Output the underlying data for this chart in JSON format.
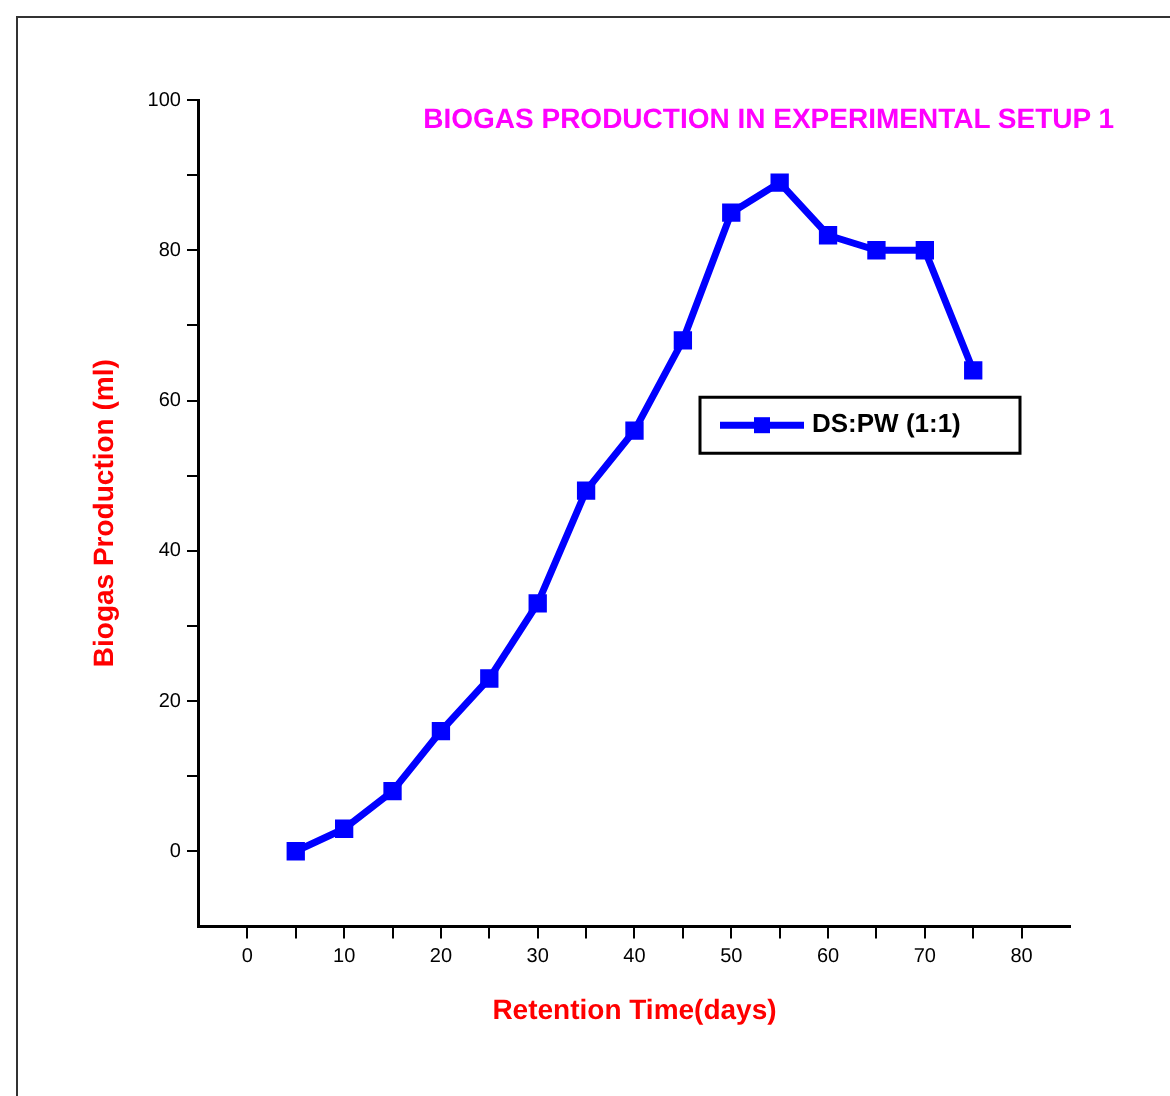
{
  "chart_data": {
    "type": "line",
    "title": "BIOGAS PRODUCTION IN EXPERIMENTAL SETUP 1",
    "xlabel": "Retention Time(days)",
    "ylabel": "Biogas Production (ml)",
    "x": [
      5,
      10,
      15,
      20,
      25,
      30,
      35,
      40,
      45,
      50,
      55,
      60,
      65,
      70,
      75
    ],
    "series": [
      {
        "name": "DS:PW (1:1)",
        "color": "#0000ff",
        "values": [
          0,
          3,
          8,
          16,
          23,
          33,
          48,
          56,
          68,
          85,
          89,
          82,
          80,
          80,
          64
        ]
      }
    ],
    "xlim": [
      -5,
      85
    ],
    "xticks": [
      0,
      {
        "value": 5,
        "label": null
      },
      10,
      {
        "value": 15,
        "label": null
      },
      20,
      {
        "value": 25,
        "label": null
      },
      30,
      {
        "value": 35,
        "label": null
      },
      40,
      {
        "value": 45,
        "label": null
      },
      50,
      {
        "value": 55,
        "label": null
      },
      60,
      {
        "value": 65,
        "label": null
      },
      70,
      {
        "value": 75,
        "label": null
      },
      80
    ],
    "ylim": [
      -10,
      100
    ],
    "yticks": [
      0,
      {
        "value": 10,
        "label": null
      },
      20,
      {
        "value": 30,
        "label": null
      },
      40,
      {
        "value": 50,
        "label": null
      },
      60,
      {
        "value": 70,
        "label": null
      },
      80,
      {
        "value": 90,
        "label": null
      },
      100
    ],
    "grid": false,
    "legend": "right",
    "marker": "square",
    "line_style": "solid"
  }
}
